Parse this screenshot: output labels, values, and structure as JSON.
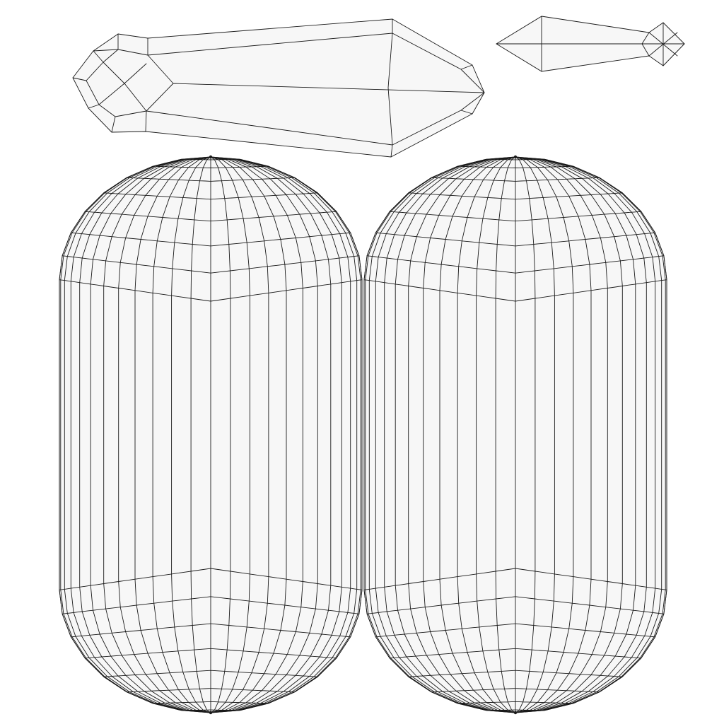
{
  "colors": {
    "background": "#ffffff",
    "face_fill": "#f7f7f7",
    "edge": "#1a1a1a"
  },
  "layout_view": {
    "islands": [
      {
        "name": "crystal-body-island",
        "kind": "faceted-crystal"
      },
      {
        "name": "crystal-tip-island",
        "kind": "faceted-crystal"
      },
      {
        "name": "capsule-island-left",
        "kind": "capsule-sphere-unwrap",
        "segments": 24
      },
      {
        "name": "capsule-island-right",
        "kind": "capsule-sphere-unwrap",
        "segments": 24
      }
    ]
  }
}
